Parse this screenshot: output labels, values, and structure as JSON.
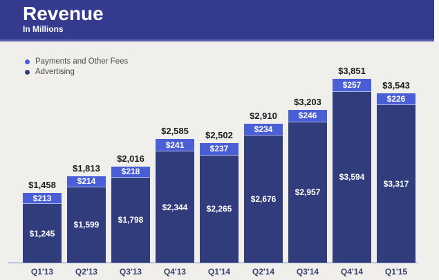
{
  "header": {
    "title": "Revenue",
    "subtitle": "In Millions"
  },
  "colors": {
    "page_bg": "#f0efec",
    "header_bg": "#343a8e",
    "header_edge": "#5a60ab",
    "axis": "#bcc6e0",
    "total_label": "#1c1c1e",
    "x_label": "#39436b",
    "legend_text": "#4b4b4d"
  },
  "chart_data": {
    "type": "bar",
    "stacked": true,
    "title": "Revenue",
    "subtitle": "In Millions",
    "value_prefix": "$",
    "grid": false,
    "legend_position": "top-left",
    "categories": [
      "Q1'13",
      "Q2'13",
      "Q3'13",
      "Q4'13",
      "Q1'14",
      "Q2'14",
      "Q3'14",
      "Q4'14",
      "Q1'15"
    ],
    "series": [
      {
        "name": "Payments and Other Fees",
        "color": "#4a5ed6",
        "values": [
          213,
          214,
          218,
          241,
          237,
          234,
          246,
          257,
          226
        ]
      },
      {
        "name": "Advertising",
        "color": "#313c7d",
        "values": [
          1245,
          1599,
          1798,
          2344,
          2265,
          2676,
          2957,
          3594,
          3317
        ]
      }
    ],
    "totals": [
      1458,
      1813,
      2016,
      2585,
      2502,
      2910,
      3203,
      3851,
      3543
    ],
    "ylim": [
      0,
      3851
    ]
  }
}
